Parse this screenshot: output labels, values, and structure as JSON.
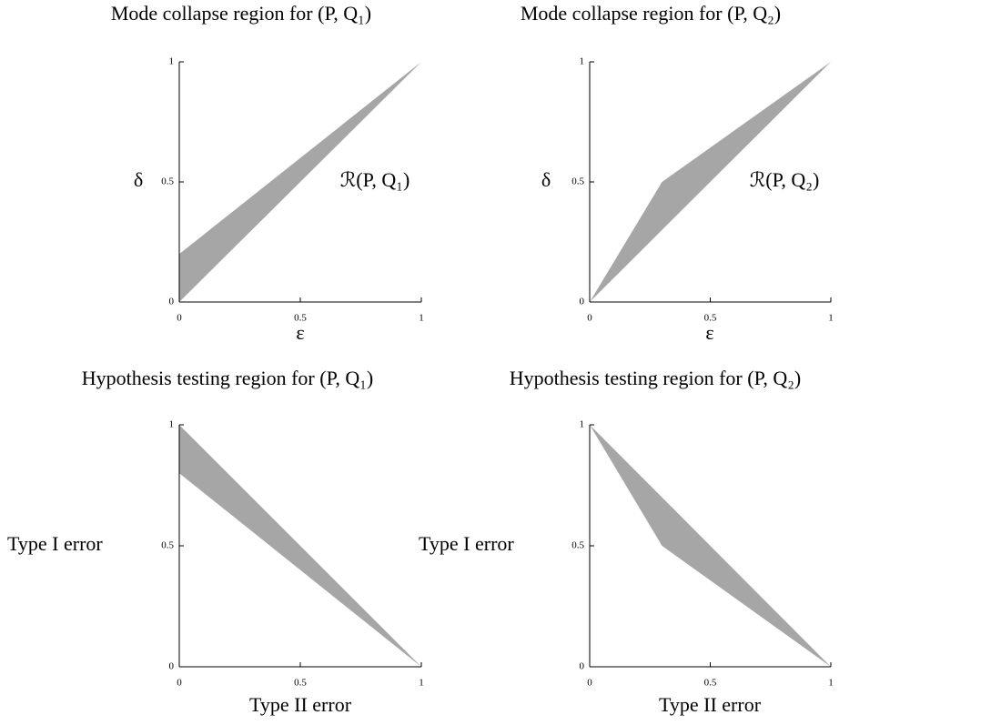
{
  "chart_data": [
    {
      "type": "area_between",
      "title": "Mode collapse region for (P, Q₁)",
      "xlabel": "ε",
      "ylabel": "δ",
      "annotation": "ℛ(P, Q₁)",
      "x": [
        0,
        1
      ],
      "y_upper": [
        0.2,
        1
      ],
      "y_lower": [
        0,
        1
      ],
      "color": "#a6a6a6",
      "xlim": [
        0,
        1
      ],
      "ylim": [
        0,
        1
      ],
      "xticks": [
        0,
        0.5,
        1
      ],
      "yticks": [
        0,
        0.5,
        1
      ]
    },
    {
      "type": "area_between",
      "title": "Mode collapse region for (P, Q₂)",
      "xlabel": "ε",
      "ylabel": "δ",
      "annotation": "ℛ(P, Q₂)",
      "x": [
        0,
        0.3,
        1
      ],
      "y_upper": [
        0,
        0.5,
        1
      ],
      "y_lower": [
        0,
        0.3,
        1
      ],
      "color": "#a6a6a6",
      "xlim": [
        0,
        1
      ],
      "ylim": [
        0,
        1
      ],
      "xticks": [
        0,
        0.5,
        1
      ],
      "yticks": [
        0,
        0.5,
        1
      ]
    },
    {
      "type": "area_between",
      "title": "Hypothesis testing region for (P, Q₁)",
      "xlabel": "Type II error",
      "ylabel": "Type I error",
      "x": [
        0,
        1
      ],
      "y_upper": [
        1,
        0
      ],
      "y_lower": [
        0.8,
        0
      ],
      "color": "#a6a6a6",
      "xlim": [
        0,
        1
      ],
      "ylim": [
        0,
        1
      ],
      "xticks": [
        0,
        0.5,
        1
      ],
      "yticks": [
        0,
        0.5,
        1
      ]
    },
    {
      "type": "area_between",
      "title": "Hypothesis testing region for (P, Q₂)",
      "xlabel": "Type II error",
      "ylabel": "Type I error",
      "x": [
        0,
        0.3,
        1
      ],
      "y_upper": [
        1,
        0.7,
        0
      ],
      "y_lower": [
        1,
        0.5,
        0
      ],
      "color": "#a6a6a6",
      "xlim": [
        0,
        1
      ],
      "ylim": [
        0,
        1
      ],
      "xticks": [
        0,
        0.5,
        1
      ],
      "yticks": [
        0,
        0.5,
        1
      ]
    }
  ]
}
